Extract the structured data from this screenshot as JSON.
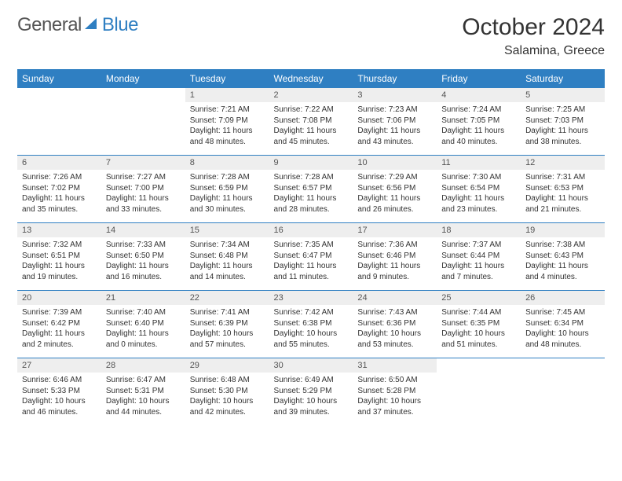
{
  "brand": {
    "name_a": "General",
    "name_b": "Blue"
  },
  "header": {
    "month_title": "October 2024",
    "location": "Salamina, Greece"
  },
  "colors": {
    "accent": "#2f7fc2",
    "header_text": "#ffffff",
    "daynum_bg": "#eeeeee",
    "text": "#333333"
  },
  "weekdays": [
    "Sunday",
    "Monday",
    "Tuesday",
    "Wednesday",
    "Thursday",
    "Friday",
    "Saturday"
  ],
  "weeks": [
    [
      {
        "n": "",
        "sr": "",
        "ss": "",
        "d1": "",
        "d2": ""
      },
      {
        "n": "",
        "sr": "",
        "ss": "",
        "d1": "",
        "d2": ""
      },
      {
        "n": "1",
        "sr": "Sunrise: 7:21 AM",
        "ss": "Sunset: 7:09 PM",
        "d1": "Daylight: 11 hours",
        "d2": "and 48 minutes."
      },
      {
        "n": "2",
        "sr": "Sunrise: 7:22 AM",
        "ss": "Sunset: 7:08 PM",
        "d1": "Daylight: 11 hours",
        "d2": "and 45 minutes."
      },
      {
        "n": "3",
        "sr": "Sunrise: 7:23 AM",
        "ss": "Sunset: 7:06 PM",
        "d1": "Daylight: 11 hours",
        "d2": "and 43 minutes."
      },
      {
        "n": "4",
        "sr": "Sunrise: 7:24 AM",
        "ss": "Sunset: 7:05 PM",
        "d1": "Daylight: 11 hours",
        "d2": "and 40 minutes."
      },
      {
        "n": "5",
        "sr": "Sunrise: 7:25 AM",
        "ss": "Sunset: 7:03 PM",
        "d1": "Daylight: 11 hours",
        "d2": "and 38 minutes."
      }
    ],
    [
      {
        "n": "6",
        "sr": "Sunrise: 7:26 AM",
        "ss": "Sunset: 7:02 PM",
        "d1": "Daylight: 11 hours",
        "d2": "and 35 minutes."
      },
      {
        "n": "7",
        "sr": "Sunrise: 7:27 AM",
        "ss": "Sunset: 7:00 PM",
        "d1": "Daylight: 11 hours",
        "d2": "and 33 minutes."
      },
      {
        "n": "8",
        "sr": "Sunrise: 7:28 AM",
        "ss": "Sunset: 6:59 PM",
        "d1": "Daylight: 11 hours",
        "d2": "and 30 minutes."
      },
      {
        "n": "9",
        "sr": "Sunrise: 7:28 AM",
        "ss": "Sunset: 6:57 PM",
        "d1": "Daylight: 11 hours",
        "d2": "and 28 minutes."
      },
      {
        "n": "10",
        "sr": "Sunrise: 7:29 AM",
        "ss": "Sunset: 6:56 PM",
        "d1": "Daylight: 11 hours",
        "d2": "and 26 minutes."
      },
      {
        "n": "11",
        "sr": "Sunrise: 7:30 AM",
        "ss": "Sunset: 6:54 PM",
        "d1": "Daylight: 11 hours",
        "d2": "and 23 minutes."
      },
      {
        "n": "12",
        "sr": "Sunrise: 7:31 AM",
        "ss": "Sunset: 6:53 PM",
        "d1": "Daylight: 11 hours",
        "d2": "and 21 minutes."
      }
    ],
    [
      {
        "n": "13",
        "sr": "Sunrise: 7:32 AM",
        "ss": "Sunset: 6:51 PM",
        "d1": "Daylight: 11 hours",
        "d2": "and 19 minutes."
      },
      {
        "n": "14",
        "sr": "Sunrise: 7:33 AM",
        "ss": "Sunset: 6:50 PM",
        "d1": "Daylight: 11 hours",
        "d2": "and 16 minutes."
      },
      {
        "n": "15",
        "sr": "Sunrise: 7:34 AM",
        "ss": "Sunset: 6:48 PM",
        "d1": "Daylight: 11 hours",
        "d2": "and 14 minutes."
      },
      {
        "n": "16",
        "sr": "Sunrise: 7:35 AM",
        "ss": "Sunset: 6:47 PM",
        "d1": "Daylight: 11 hours",
        "d2": "and 11 minutes."
      },
      {
        "n": "17",
        "sr": "Sunrise: 7:36 AM",
        "ss": "Sunset: 6:46 PM",
        "d1": "Daylight: 11 hours",
        "d2": "and 9 minutes."
      },
      {
        "n": "18",
        "sr": "Sunrise: 7:37 AM",
        "ss": "Sunset: 6:44 PM",
        "d1": "Daylight: 11 hours",
        "d2": "and 7 minutes."
      },
      {
        "n": "19",
        "sr": "Sunrise: 7:38 AM",
        "ss": "Sunset: 6:43 PM",
        "d1": "Daylight: 11 hours",
        "d2": "and 4 minutes."
      }
    ],
    [
      {
        "n": "20",
        "sr": "Sunrise: 7:39 AM",
        "ss": "Sunset: 6:42 PM",
        "d1": "Daylight: 11 hours",
        "d2": "and 2 minutes."
      },
      {
        "n": "21",
        "sr": "Sunrise: 7:40 AM",
        "ss": "Sunset: 6:40 PM",
        "d1": "Daylight: 11 hours",
        "d2": "and 0 minutes."
      },
      {
        "n": "22",
        "sr": "Sunrise: 7:41 AM",
        "ss": "Sunset: 6:39 PM",
        "d1": "Daylight: 10 hours",
        "d2": "and 57 minutes."
      },
      {
        "n": "23",
        "sr": "Sunrise: 7:42 AM",
        "ss": "Sunset: 6:38 PM",
        "d1": "Daylight: 10 hours",
        "d2": "and 55 minutes."
      },
      {
        "n": "24",
        "sr": "Sunrise: 7:43 AM",
        "ss": "Sunset: 6:36 PM",
        "d1": "Daylight: 10 hours",
        "d2": "and 53 minutes."
      },
      {
        "n": "25",
        "sr": "Sunrise: 7:44 AM",
        "ss": "Sunset: 6:35 PM",
        "d1": "Daylight: 10 hours",
        "d2": "and 51 minutes."
      },
      {
        "n": "26",
        "sr": "Sunrise: 7:45 AM",
        "ss": "Sunset: 6:34 PM",
        "d1": "Daylight: 10 hours",
        "d2": "and 48 minutes."
      }
    ],
    [
      {
        "n": "27",
        "sr": "Sunrise: 6:46 AM",
        "ss": "Sunset: 5:33 PM",
        "d1": "Daylight: 10 hours",
        "d2": "and 46 minutes."
      },
      {
        "n": "28",
        "sr": "Sunrise: 6:47 AM",
        "ss": "Sunset: 5:31 PM",
        "d1": "Daylight: 10 hours",
        "d2": "and 44 minutes."
      },
      {
        "n": "29",
        "sr": "Sunrise: 6:48 AM",
        "ss": "Sunset: 5:30 PM",
        "d1": "Daylight: 10 hours",
        "d2": "and 42 minutes."
      },
      {
        "n": "30",
        "sr": "Sunrise: 6:49 AM",
        "ss": "Sunset: 5:29 PM",
        "d1": "Daylight: 10 hours",
        "d2": "and 39 minutes."
      },
      {
        "n": "31",
        "sr": "Sunrise: 6:50 AM",
        "ss": "Sunset: 5:28 PM",
        "d1": "Daylight: 10 hours",
        "d2": "and 37 minutes."
      },
      {
        "n": "",
        "sr": "",
        "ss": "",
        "d1": "",
        "d2": ""
      },
      {
        "n": "",
        "sr": "",
        "ss": "",
        "d1": "",
        "d2": ""
      }
    ]
  ]
}
